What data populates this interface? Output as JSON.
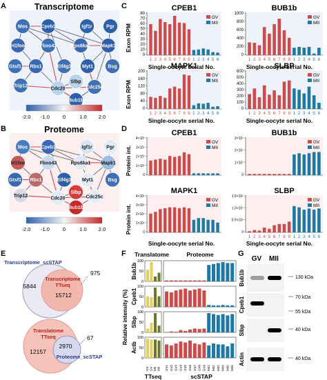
{
  "panels": {
    "A": {
      "letter": "A",
      "title": "Transcriptome",
      "cbar_ticks": [
        "-2.0",
        "-1.0",
        "0",
        "1.0",
        "2.0"
      ]
    },
    "B": {
      "letter": "B",
      "title": "Proteome",
      "cbar_ticks": [
        "-2.0",
        "-1.0",
        "0",
        "1.0",
        "2.0"
      ]
    },
    "C": {
      "letter": "C",
      "ylabel": "Exon RPM",
      "xlabel": "Single-oocyte serial No."
    },
    "D": {
      "letter": "D",
      "ylabel": "Protein int.",
      "xlabel": "Single-oocyte serial No."
    },
    "E": {
      "letter": "E"
    },
    "F": {
      "letter": "F",
      "col_translatome": "Translatome",
      "col_proteome": "Proteome",
      "ylabel": "Relative intensity (%)",
      "xlabel_left": "TTseq",
      "xlabel_right": "scSTAP"
    },
    "G": {
      "letter": "G",
      "lane1": "GV",
      "lane2": "MII"
    }
  },
  "network_nodes": [
    {
      "id": "mos",
      "label": "Mos"
    },
    {
      "id": "cpeb1",
      "label": "Cpeb1"
    },
    {
      "id": "igf1r",
      "label": "Igf1r"
    },
    {
      "id": "pgr",
      "label": "Pgr"
    },
    {
      "id": "h1foo",
      "label": "H1foo"
    },
    {
      "id": "fbxo43",
      "label": "Fbxo43"
    },
    {
      "id": "rps6ka1",
      "label": "Rps6ka1"
    },
    {
      "id": "mapk1",
      "label": "Mapk1"
    },
    {
      "id": "gtsf1",
      "label": "Gtsf1"
    },
    {
      "id": "rbx1",
      "label": "Rbx1"
    },
    {
      "id": "eif4g3",
      "label": "Eif4g3"
    },
    {
      "id": "myt1",
      "label": "Myt1"
    },
    {
      "id": "bsg",
      "label": "Bsg"
    },
    {
      "id": "slbp",
      "label": "Slbp"
    },
    {
      "id": "trip12",
      "label": "Trip12"
    },
    {
      "id": "cdc20",
      "label": "Cdc20"
    },
    {
      "id": "cdc25c",
      "label": "Cdc25c"
    },
    {
      "id": "bub1b",
      "label": "Bub1b"
    }
  ],
  "node_colors": {
    "transcriptome": {
      "mos": "#3f6fb5",
      "cpeb1": "#2f5fa8",
      "igf1r": "#2f5fa8",
      "pgr": "#2f5fa8",
      "h1foo": "#3a68b0",
      "fbxo43": "#3f6fb5",
      "rps6ka1": "#3a68b0",
      "mapk1": "#2f5fa8",
      "gtsf1": "#3f6fb5",
      "rbx1": "#3a68b0",
      "eif4g3": "#3f6fb5",
      "myt1": "#2f5fa8",
      "bsg": "#3f6fb5",
      "slbp": "#b9d3ea",
      "trip12": "#3f6fb5",
      "cdc20": "#b9d3ea",
      "cdc25c": "#3f6fb5",
      "bub1b": "#2f5fa8"
    },
    "proteome": {
      "mos": "#4a7cc0",
      "cpeb1": "#3a68b0",
      "igf1r": "#d7e6f3",
      "pgr": "#e2ecf6",
      "h1foo": "#c75b5b",
      "fbxo43": "#c7d9ec",
      "rps6ka1": "#dde8f4",
      "mapk1": "#9cbde0",
      "gtsf1": "#3a68b0",
      "rbx1": "#b76a6a",
      "eif4g3": "#2f5fa8",
      "myt1": "#e2ecf6",
      "bsg": "#3f6fb5",
      "slbp": "#d93a3a",
      "trip12": "#d9d9e6",
      "cdc20": "#e2ecf6",
      "cdc25c": "#e2ecf6",
      "bub1b": "#c42a2a"
    }
  },
  "legend": {
    "gv": "GV",
    "mii": "MII"
  },
  "charts": [
    {
      "id": "c_cpeb1",
      "title": "CPEB1",
      "yticks": [
        "80",
        "70",
        "60",
        "50",
        "40",
        "30",
        "20",
        "10",
        "0"
      ],
      "values": [
        60,
        47,
        70,
        64,
        60,
        76,
        63,
        62,
        50,
        10,
        11,
        13,
        11,
        6,
        5
      ],
      "ymax": 80,
      "xlabels": [
        "1",
        "2",
        "3",
        "4",
        "5",
        "6",
        "7",
        "8",
        "9",
        "1",
        "2",
        "3",
        "4",
        "5",
        "6"
      ]
    },
    {
      "id": "c_bub1b",
      "title": "BUB1b",
      "yticks": [
        "1000",
        "800",
        "600",
        "400",
        "200",
        "0"
      ],
      "values": [
        310,
        300,
        240,
        680,
        520,
        750,
        880,
        600,
        420,
        180,
        200,
        180,
        200,
        40,
        180
      ],
      "ymax": 1000,
      "xlabels": [
        "1",
        "2",
        "3",
        "4",
        "5",
        "6",
        "7",
        "8",
        "9",
        "1",
        "2",
        "3",
        "4",
        "5",
        "6"
      ]
    },
    {
      "id": "c_mapk1",
      "title": "MAPK1",
      "yticks": [
        "200",
        "160",
        "120",
        "80",
        "40",
        "0"
      ],
      "values": [
        65,
        60,
        70,
        60,
        110,
        120,
        110,
        185,
        180,
        20,
        30,
        28,
        33,
        12,
        15
      ],
      "ymax": 200,
      "xlabels": [
        "1",
        "2",
        "3",
        "4",
        "5",
        "6",
        "7",
        "8",
        "9",
        "1",
        "2",
        "3",
        "4",
        "5",
        "6"
      ]
    },
    {
      "id": "c_slbp",
      "title": "SLBP",
      "yticks": [
        "600",
        "500",
        "400",
        "300",
        "200",
        "100",
        "0"
      ],
      "values": [
        240,
        330,
        190,
        380,
        230,
        300,
        220,
        440,
        460,
        330,
        310,
        250,
        360,
        220,
        100
      ],
      "ymax": 600,
      "xlabels": [
        "1",
        "2",
        "3",
        "4",
        "5",
        "6",
        "7",
        "8",
        "9",
        "1",
        "2",
        "3",
        "4",
        "5",
        "6"
      ]
    },
    {
      "id": "d_cpeb1",
      "title": "CPEB1",
      "yticks": [
        "4×10⁷",
        "3×10⁷",
        "2×10⁷",
        "1×10⁷",
        "0"
      ],
      "values": [
        1.6,
        1.7,
        1.8,
        1.7,
        2.1,
        2.0,
        2.1,
        2.5,
        2.3,
        0.2,
        0.2,
        0.2,
        0.2,
        0.2,
        0.2
      ],
      "ymax": 4,
      "xlabels": []
    },
    {
      "id": "d_bub1b",
      "title": "BUB1b",
      "yticks": [
        "3×10⁷",
        "2×10⁷",
        "1×10⁷",
        "0"
      ],
      "values": [
        0.1,
        0.1,
        0.1,
        0.1,
        0.1,
        0.1,
        0.1,
        0.1,
        0.1,
        1.7,
        1.8,
        1.7,
        1.8,
        1.9,
        1.9
      ],
      "ymax": 3,
      "xlabels": []
    },
    {
      "id": "d_mapk1",
      "title": "MAPK1",
      "yticks": [
        "4×10⁷",
        "3×10⁷",
        "2×10⁷",
        "1×10⁷",
        "0"
      ],
      "values": [
        2.1,
        2.3,
        2.6,
        2.7,
        2.8,
        2.8,
        2.7,
        2.8,
        2.7,
        1.4,
        1.6,
        1.6,
        1.4,
        1.4,
        1.1
      ],
      "ymax": 4,
      "xlabels": []
    },
    {
      "id": "d_slbp",
      "title": "SLBP",
      "yticks": [
        "1.5×10⁷",
        "1.0×10⁷",
        "5.0×10⁶",
        "0"
      ],
      "values": [
        0.05,
        0.1,
        0.08,
        0.2,
        0.15,
        0.3,
        0.35,
        0.35,
        0.45,
        1.1,
        1.05,
        0.95,
        1.0,
        0.95,
        1.0
      ],
      "ymax": 1.5,
      "xlabels": [
        "1",
        "2",
        "3",
        "4",
        "5",
        "6",
        "7",
        "8",
        "9",
        "1",
        "2",
        "3",
        "4",
        "5",
        "6"
      ]
    }
  ],
  "venn_top": {
    "outer_label": "Transcriptome_scSTAP",
    "inner_label_1": "Transcriptome",
    "inner_label_2": "TTseq",
    "left_count": "5844",
    "inner_count": "15712",
    "callout": "975"
  },
  "venn_bottom": {
    "outer_label_1": "Translatome",
    "outer_label_2": "TTseq",
    "inner_label": "Proteome_scSTAP",
    "left_count": "12157",
    "inner_count": "2970",
    "callout": "67"
  },
  "f_rows": [
    {
      "gene": "Bub1b",
      "trans": [
        0.6,
        1.0,
        0.25,
        0.45
      ],
      "prot": [
        0.05,
        0.05,
        0.05,
        0.05,
        0.05,
        0.05,
        0.05,
        0.05,
        0.05,
        0.85,
        0.9,
        0.95,
        1.0,
        0.95,
        0.95
      ]
    },
    {
      "gene": "Cpeb1",
      "trans": [
        0.55,
        0.5,
        1.0,
        0.55
      ],
      "prot": [
        0.8,
        0.75,
        0.85,
        0.9,
        0.95,
        0.85,
        0.9,
        0.95,
        0.85,
        0.1,
        0.08,
        0.08,
        0.1,
        0.08,
        0.08
      ]
    },
    {
      "gene": "Slbp",
      "trans": [
        0.2,
        0.5,
        1.0,
        0.35
      ],
      "prot": [
        0.02,
        0.05,
        0.03,
        0.12,
        0.08,
        0.15,
        0.2,
        0.18,
        0.2,
        1.0,
        0.95,
        0.9,
        0.95,
        0.88,
        0.95
      ]
    },
    {
      "gene": "Actb",
      "trans": [
        1.0,
        0.95,
        0.95,
        0.9
      ],
      "prot": [
        0.7,
        0.65,
        0.75,
        0.85,
        0.8,
        0.9,
        0.75,
        0.7,
        0.8,
        0.65,
        0.75,
        0.7,
        0.7,
        0.6,
        0.75
      ]
    }
  ],
  "f_yticks": [
    "100",
    "50",
    "0"
  ],
  "f_trans_labels": [
    "GV",
    "GV",
    "MII",
    "MII"
  ],
  "f_prot_labels": [
    "GV1",
    "GV2",
    "GV3",
    "GV4",
    "GV5",
    "GV6",
    "GV7",
    "GV8",
    "GV9",
    "MII1",
    "MII2",
    "MII3",
    "MII4",
    "MII5",
    "MII6"
  ],
  "blots": [
    {
      "name": "Bub1b",
      "marker": "130 kDa",
      "band_gv": 0.35,
      "band_mii": 1.0
    },
    {
      "name": "Cpeb1",
      "marker": "70 kDa",
      "marker2": "55 kDa",
      "band_gv": 1.0,
      "band_mii": 0.0
    },
    {
      "name": "Slbp",
      "marker": "40 kDa",
      "band_gv": 0.0,
      "band_mii": 1.0
    },
    {
      "name": "Actin",
      "marker": "40 kDa",
      "band_gv": 1.0,
      "band_mii": 1.0
    }
  ],
  "colors": {
    "gv": "#cc4b4b",
    "mii": "#1f7aa3",
    "gv_light": "#f4b3b3",
    "mii_light": "#7fb7d2",
    "yellow": "#e7cf55",
    "olive": "#6b7a2a",
    "edge_red": "#d24a4a",
    "edge_gray": "#555555",
    "pink_bg": "#fdeef0"
  }
}
